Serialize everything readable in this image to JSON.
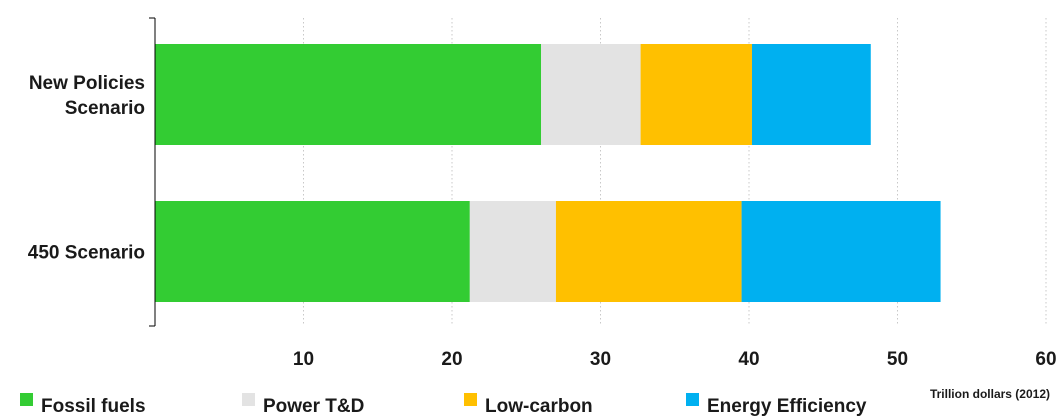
{
  "chart_data": {
    "type": "bar",
    "orientation": "horizontal",
    "stacked": true,
    "categories": [
      "New Policies Scenario",
      "450 Scenario"
    ],
    "category_label_lines": [
      [
        "New Policies",
        "Scenario"
      ],
      [
        "450 Scenario"
      ]
    ],
    "series": [
      {
        "name": "Fossil fuels",
        "color": "#33cc33",
        "values": [
          26.0,
          21.2
        ]
      },
      {
        "name": "Power T&D",
        "color": "#e3e3e3",
        "values": [
          6.7,
          5.8
        ]
      },
      {
        "name": "Low-carbon",
        "color": "#ffc000",
        "values": [
          7.5,
          12.5
        ]
      },
      {
        "name": "Energy Efficiency",
        "color": "#00b0f0",
        "values": [
          8.0,
          13.4
        ]
      }
    ],
    "xlim": [
      0,
      60
    ],
    "xticks": [
      10,
      20,
      30,
      40,
      50,
      60
    ],
    "unit_label": "Trillion dollars (2012)",
    "grid": "vertical dotted",
    "legend_position": "bottom"
  }
}
